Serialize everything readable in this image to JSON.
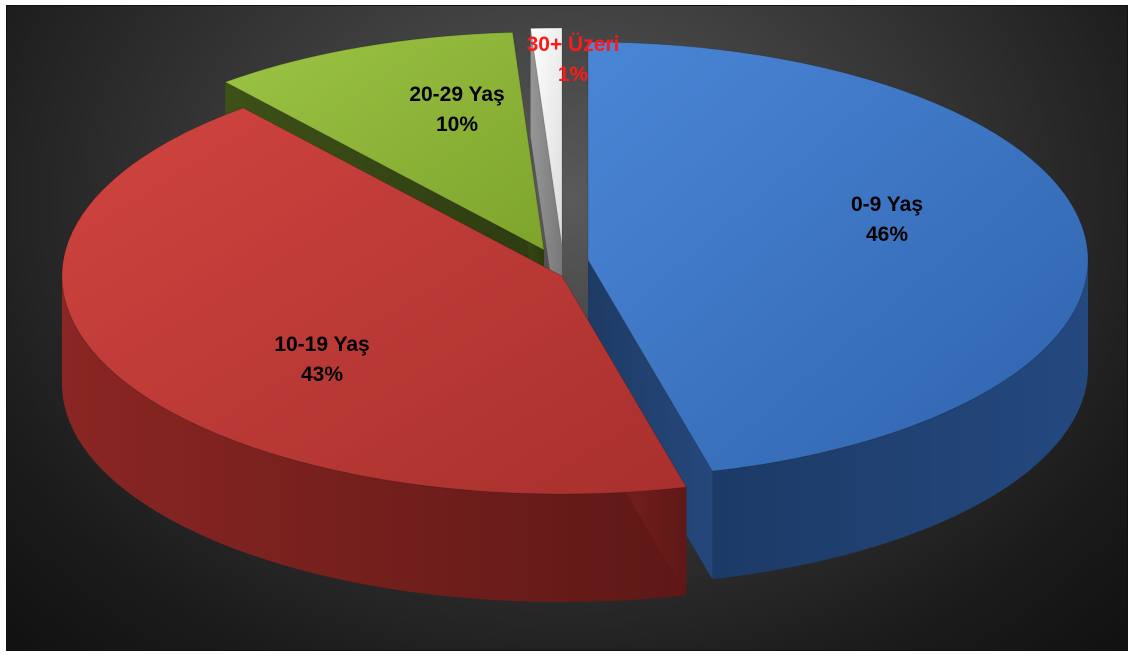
{
  "chart_data": {
    "type": "pie",
    "title": "",
    "slices": [
      {
        "label": "0-9 Yaş",
        "value": 46,
        "value_label": "46%",
        "color": "#3f7acc",
        "label_color": "#000000"
      },
      {
        "label": "10-19 Yaş",
        "value": 43,
        "value_label": "43%",
        "color": "#c63b37",
        "label_color": "#000000"
      },
      {
        "label": "20-29 Yaş",
        "value": 10,
        "value_label": "10%",
        "color": "#8fb536",
        "label_color": "#000000"
      },
      {
        "label": "30+ Üzeri",
        "value": 1,
        "value_label": "1%",
        "color": "#f4f4f4",
        "label_color": "#ff1a1a"
      }
    ],
    "style": "3d-exploded",
    "legend": "none",
    "background": "dark-gradient"
  }
}
